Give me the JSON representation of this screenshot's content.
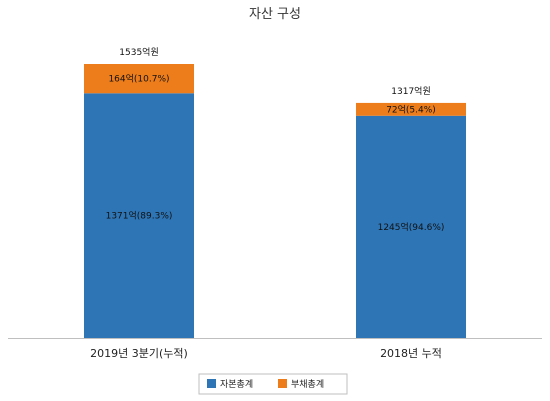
{
  "chart_data": {
    "type": "bar",
    "stacked": true,
    "title": "자산 구성",
    "categories": [
      "2019년 3분기(누적)",
      "2018년 누적"
    ],
    "totals": [
      1535,
      1317
    ],
    "total_labels": [
      "1535억원",
      "1317억원"
    ],
    "series": [
      {
        "name": "자본총계",
        "color": "#2E75B6",
        "values": [
          1371,
          1245
        ],
        "labels": [
          "1371억(89.3%)",
          "1245억(94.6%)"
        ]
      },
      {
        "name": "부채총계",
        "color": "#ED7D1A",
        "values": [
          164,
          72
        ],
        "labels": [
          "164억(10.7%)",
          "72억(5.4%)"
        ]
      }
    ],
    "ylim": [
      0,
      1535
    ],
    "grid": false,
    "legend_position": "bottom"
  }
}
